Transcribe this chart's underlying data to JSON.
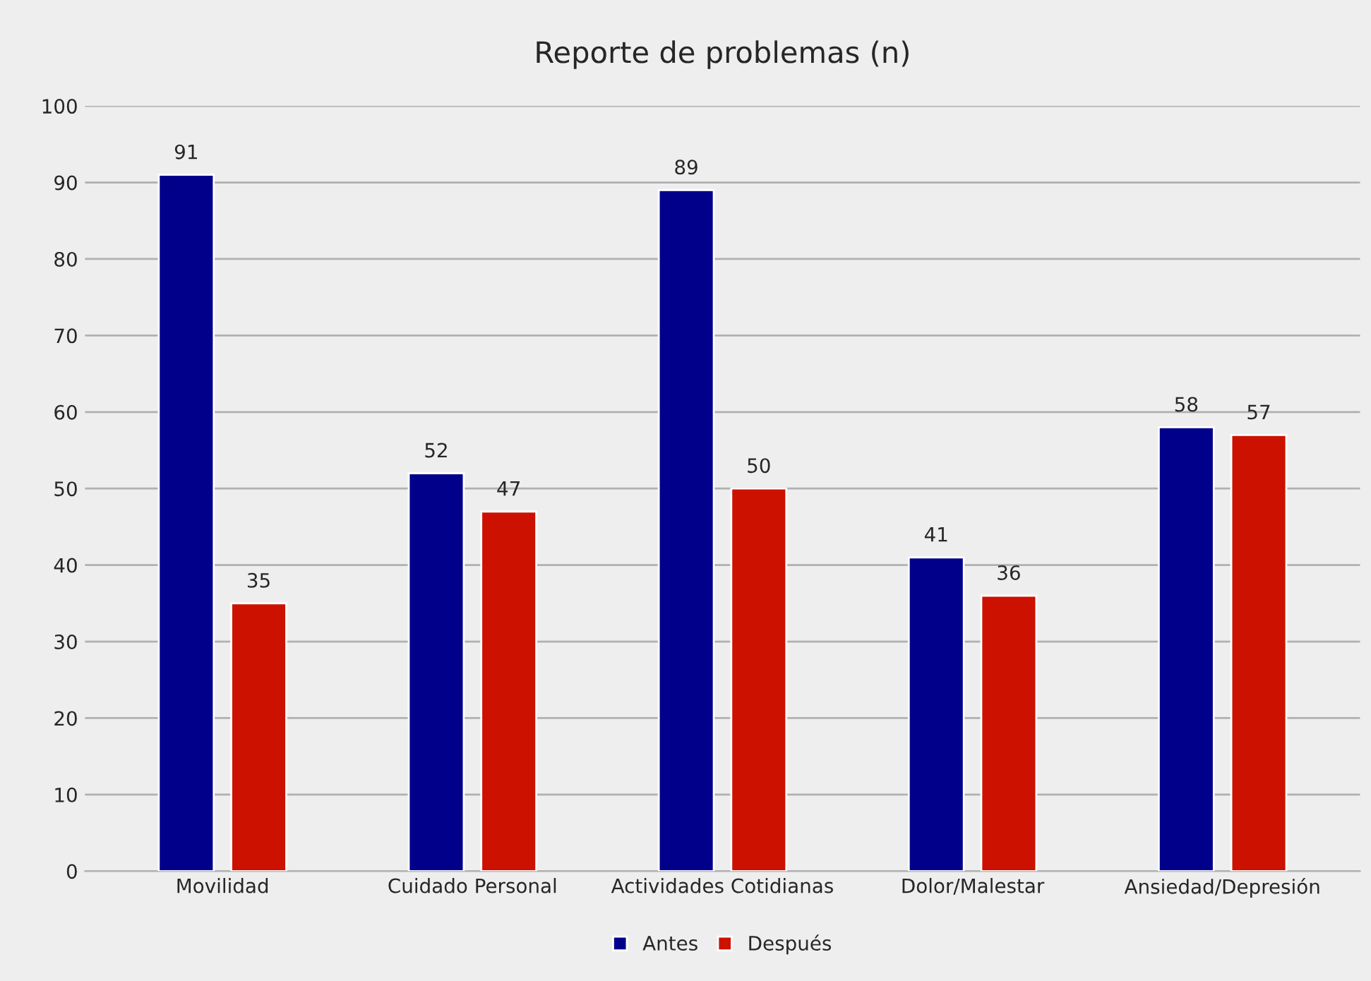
{
  "chart_data": {
    "type": "bar",
    "title": "Reporte de problemas (n)",
    "categories": [
      "Movilidad",
      "Cuidado Personal",
      "Actividades Cotidianas",
      "Dolor/Malestar",
      "Ansiedad/Depresión"
    ],
    "series": [
      {
        "name": "Antes",
        "color": "#00008b",
        "values": [
          91,
          52,
          89,
          41,
          58
        ]
      },
      {
        "name": "Después",
        "color": "#cc1100",
        "values": [
          35,
          47,
          50,
          36,
          57
        ]
      }
    ],
    "ylim": [
      0,
      100
    ],
    "yticks": [
      0,
      10,
      20,
      30,
      40,
      50,
      60,
      70,
      80,
      90,
      100
    ],
    "grid": "y",
    "legend": "bottom",
    "data_labels": true
  }
}
